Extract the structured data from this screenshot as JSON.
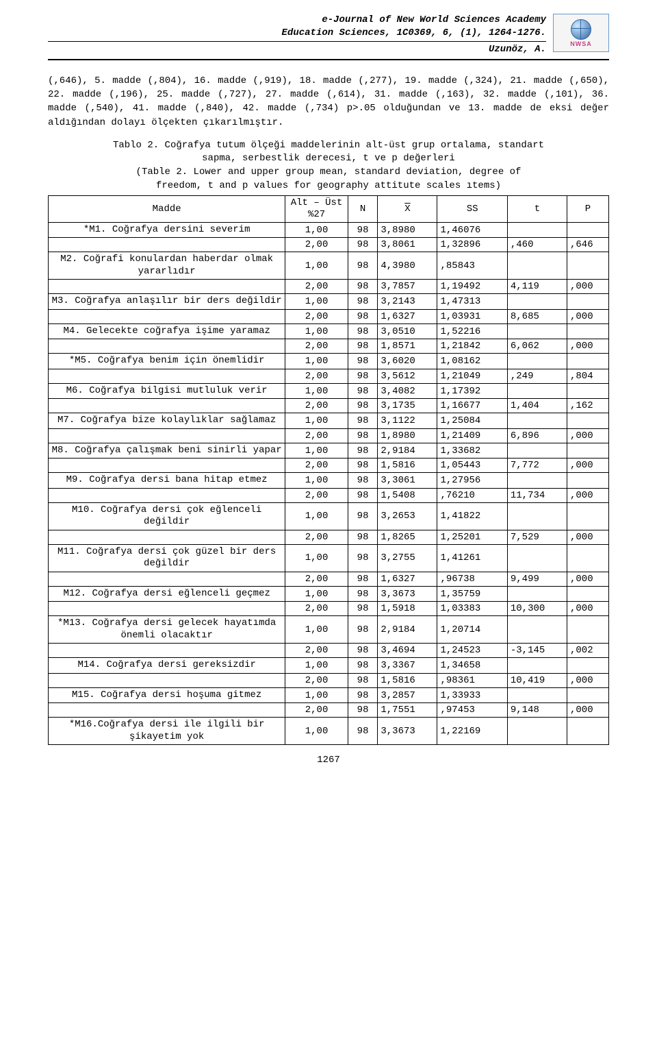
{
  "header": {
    "journal": "e-Journal of New World Sciences Academy",
    "subline": "Education Sciences, 1C0369, 6, (1), 1264-1276.",
    "author": "Uzunöz, A.",
    "logo_label": "NWSA"
  },
  "paragraph1": "(,646), 5. madde (,804), 16. madde (,919), 18. madde (,277), 19. madde (,324), 21. madde (,650), 22. madde (,196), 25. madde (,727), 27. madde (,614), 31. madde (,163), 32. madde (,101), 36. madde (,540), 41. madde (,840), 42. madde (,734) p>.05 olduğundan ve 13. madde de eksi değer aldığından dolayı ölçekten çıkarılmıştır.",
  "caption": {
    "line1": "Tablo 2. Coğrafya tutum ölçeği maddelerinin alt-üst grup ortalama, standart",
    "line2": "sapma, serbestlik derecesi, t ve p değerleri",
    "line3": "(Table 2. Lower and upper group mean, standard deviation, degree of",
    "line4": "freedom, t and p values for geography attitute scales ıtems)"
  },
  "columns": {
    "madde": "Madde",
    "group": "Alt – Üst %27",
    "n": "N",
    "x": "X",
    "ss": "SS",
    "t": "t",
    "p": "P"
  },
  "rows": [
    {
      "madde": "*M1. Coğrafya dersini severim",
      "grp": "1,00",
      "n": "98",
      "x": "3,8980",
      "ss": "1,46076",
      "t": "",
      "p": ""
    },
    {
      "madde": "",
      "grp": "2,00",
      "n": "98",
      "x": "3,8061",
      "ss": "1,32896",
      "t": ",460",
      "p": ",646"
    },
    {
      "madde": "M2. Coğrafi konulardan haberdar olmak yararlıdır",
      "grp": "1,00",
      "n": "98",
      "x": "4,3980",
      "ss": ",85843",
      "t": "",
      "p": ""
    },
    {
      "madde": "",
      "grp": "2,00",
      "n": "98",
      "x": "3,7857",
      "ss": "1,19492",
      "t": "4,119",
      "p": ",000"
    },
    {
      "madde": "M3. Coğrafya anlaşılır bir ders değildir",
      "grp": "1,00",
      "n": "98",
      "x": "3,2143",
      "ss": "1,47313",
      "t": "",
      "p": ""
    },
    {
      "madde": "",
      "grp": "2,00",
      "n": "98",
      "x": "1,6327",
      "ss": "1,03931",
      "t": "8,685",
      "p": ",000"
    },
    {
      "madde": "M4. Gelecekte coğrafya işime yaramaz",
      "grp": "1,00",
      "n": "98",
      "x": "3,0510",
      "ss": "1,52216",
      "t": "",
      "p": ""
    },
    {
      "madde": "",
      "grp": "2,00",
      "n": "98",
      "x": "1,8571",
      "ss": "1,21842",
      "t": "6,062",
      "p": ",000"
    },
    {
      "madde": "*M5. Coğrafya benim için önemlidir",
      "grp": "1,00",
      "n": "98",
      "x": "3,6020",
      "ss": "1,08162",
      "t": "",
      "p": ""
    },
    {
      "madde": "",
      "grp": "2,00",
      "n": "98",
      "x": "3,5612",
      "ss": "1,21049",
      "t": ",249",
      "p": ",804"
    },
    {
      "madde": "M6. Coğrafya bilgisi mutluluk verir",
      "grp": "1,00",
      "n": "98",
      "x": "3,4082",
      "ss": "1,17392",
      "t": "",
      "p": ""
    },
    {
      "madde": "",
      "grp": "2,00",
      "n": "98",
      "x": "3,1735",
      "ss": "1,16677",
      "t": "1,404",
      "p": ",162"
    },
    {
      "madde": "M7. Coğrafya bize kolaylıklar sağlamaz",
      "grp": "1,00",
      "n": "98",
      "x": "3,1122",
      "ss": "1,25084",
      "t": "",
      "p": ""
    },
    {
      "madde": "",
      "grp": "2,00",
      "n": "98",
      "x": "1,8980",
      "ss": "1,21409",
      "t": "6,896",
      "p": ",000"
    },
    {
      "madde": "M8. Coğrafya çalışmak beni sinirli yapar",
      "grp": "1,00",
      "n": "98",
      "x": "2,9184",
      "ss": "1,33682",
      "t": "",
      "p": ""
    },
    {
      "madde": "",
      "grp": "2,00",
      "n": "98",
      "x": "1,5816",
      "ss": "1,05443",
      "t": "7,772",
      "p": ",000"
    },
    {
      "madde": "M9. Coğrafya dersi bana hitap etmez",
      "grp": "1,00",
      "n": "98",
      "x": "3,3061",
      "ss": "1,27956",
      "t": "",
      "p": ""
    },
    {
      "madde": "",
      "grp": "2,00",
      "n": "98",
      "x": "1,5408",
      "ss": ",76210",
      "t": "11,734",
      "p": ",000"
    },
    {
      "madde": "M10. Coğrafya dersi çok eğlenceli değildir",
      "grp": "1,00",
      "n": "98",
      "x": "3,2653",
      "ss": "1,41822",
      "t": "",
      "p": ""
    },
    {
      "madde": "",
      "grp": "2,00",
      "n": "98",
      "x": "1,8265",
      "ss": "1,25201",
      "t": "7,529",
      "p": ",000"
    },
    {
      "madde": "M11. Coğrafya dersi çok güzel bir ders değildir",
      "grp": "1,00",
      "n": "98",
      "x": "3,2755",
      "ss": "1,41261",
      "t": "",
      "p": ""
    },
    {
      "madde": "",
      "grp": "2,00",
      "n": "98",
      "x": "1,6327",
      "ss": ",96738",
      "t": "9,499",
      "p": ",000"
    },
    {
      "madde": "M12. Coğrafya dersi eğlenceli geçmez",
      "grp": "1,00",
      "n": "98",
      "x": "3,3673",
      "ss": "1,35759",
      "t": "",
      "p": ""
    },
    {
      "madde": "",
      "grp": "2,00",
      "n": "98",
      "x": "1,5918",
      "ss": "1,03383",
      "t": "10,300",
      "p": ",000"
    },
    {
      "madde": "*M13. Coğrafya dersi gelecek hayatımda önemli olacaktır",
      "grp": "1,00",
      "n": "98",
      "x": "2,9184",
      "ss": "1,20714",
      "t": "",
      "p": ""
    },
    {
      "madde": "",
      "grp": "2,00",
      "n": "98",
      "x": "3,4694",
      "ss": "1,24523",
      "t": "-3,145",
      "p": ",002"
    },
    {
      "madde": "M14. Coğrafya dersi gereksizdir",
      "grp": "1,00",
      "n": "98",
      "x": "3,3367",
      "ss": "1,34658",
      "t": "",
      "p": ""
    },
    {
      "madde": "",
      "grp": "2,00",
      "n": "98",
      "x": "1,5816",
      "ss": ",98361",
      "t": "10,419",
      "p": ",000"
    },
    {
      "madde": "M15. Coğrafya dersi hoşuma gitmez",
      "grp": "1,00",
      "n": "98",
      "x": "3,2857",
      "ss": "1,33933",
      "t": "",
      "p": ""
    },
    {
      "madde": "",
      "grp": "2,00",
      "n": "98",
      "x": "1,7551",
      "ss": ",97453",
      "t": "9,148",
      "p": ",000"
    },
    {
      "madde": "*M16.Coğrafya dersi ile ilgili bir şikayetim yok",
      "grp": "1,00",
      "n": "98",
      "x": "3,3673",
      "ss": "1,22169",
      "t": "",
      "p": ""
    }
  ],
  "page_number": "1267"
}
